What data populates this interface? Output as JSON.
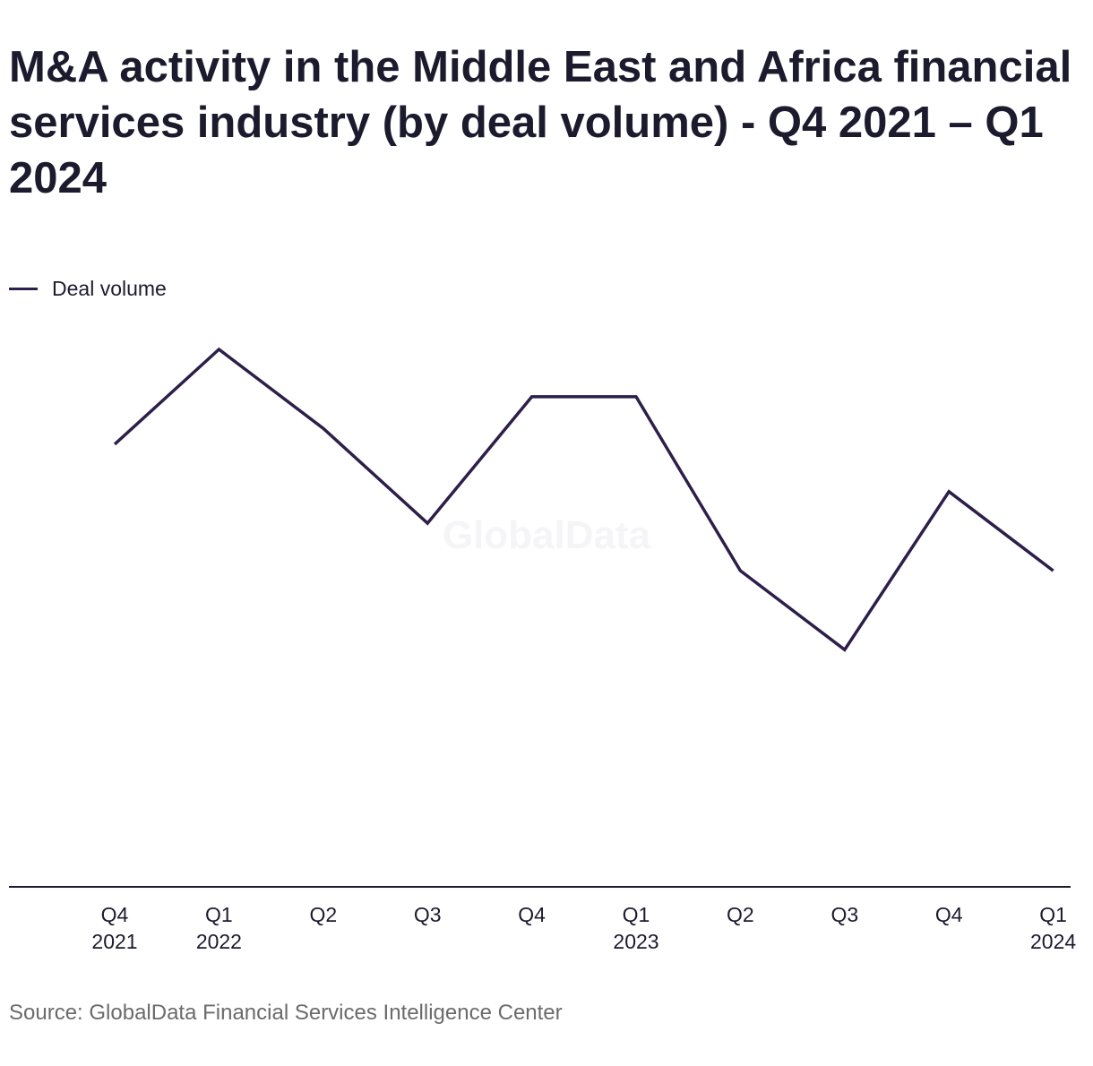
{
  "chart_data": {
    "type": "line",
    "title": "M&A activity in the Middle East and Africa financial services industry (by deal volume) - Q4 2021 – Q1 2024",
    "categories": [
      [
        "Q4",
        "2021"
      ],
      [
        "Q1",
        "2022"
      ],
      [
        "Q2",
        ""
      ],
      [
        "Q3",
        ""
      ],
      [
        "Q4",
        ""
      ],
      [
        "Q1",
        "2023"
      ],
      [
        "Q2",
        ""
      ],
      [
        "Q3",
        ""
      ],
      [
        "Q4",
        ""
      ],
      [
        "Q1",
        "2024"
      ]
    ],
    "series": [
      {
        "name": "Deal volume",
        "color": "#2d1f4a",
        "values": [
          28,
          34,
          29,
          23,
          31,
          31,
          20,
          15,
          25,
          20
        ]
      }
    ],
    "ylim": [
      0,
      56
    ],
    "grid": false,
    "legend_position": "top-left",
    "watermark": "GlobalData",
    "source": "Source: GlobalData Financial Services Intelligence Center"
  }
}
